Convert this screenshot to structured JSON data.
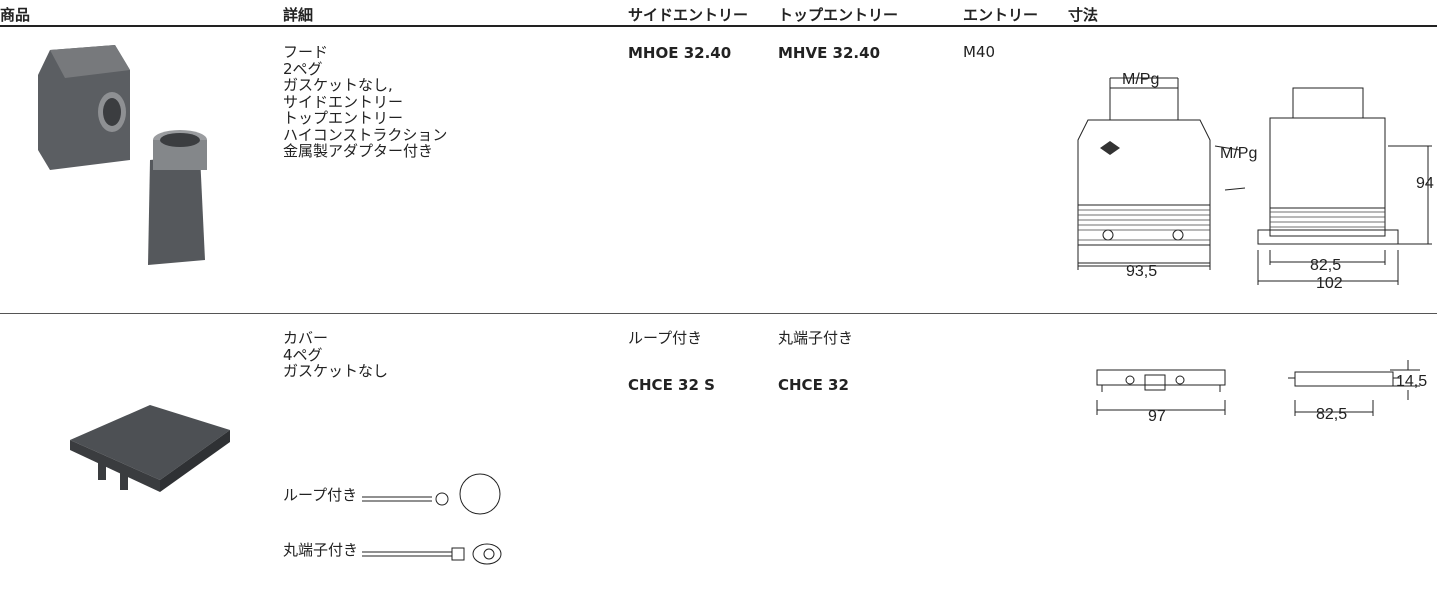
{
  "header": [
    "商品",
    "詳細",
    "サイドエントリー",
    "トップエントリー",
    "エントリー",
    "寸法"
  ],
  "rows": [
    {
      "details": [
        "フード",
        "2ペグ",
        "ガスケットなし,",
        "サイドエントリー",
        "トップエントリー",
        "ハイコンストラクション",
        "金属製アダプター付き"
      ],
      "side_entry": "MHOE 32.40",
      "top_entry": "MHVE 32.40",
      "entry": "M40",
      "dimension_labels": [
        "M/Pg",
        "M/Pg",
        "94",
        "93,5",
        "82,5",
        "102"
      ]
    },
    {
      "details": [
        "カバー",
        "4ペグ",
        "ガスケットなし"
      ],
      "side_entry_note": "ループ付き",
      "top_entry_note": "丸端子付き",
      "side_entry": "CHCE 32 S",
      "top_entry": "CHCE 32",
      "dimension_labels": [
        "97",
        "82,5",
        "14,5"
      ],
      "accessories": [
        "ループ付き",
        "丸端子付き"
      ]
    }
  ]
}
